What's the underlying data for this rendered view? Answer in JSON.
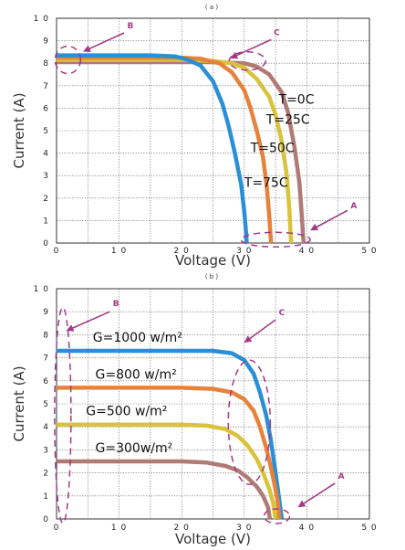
{
  "chart_data": [
    {
      "type": "line",
      "panel_label": "( a )",
      "xlabel": "Voltage (V)",
      "ylabel": "Current (A)",
      "xlim": [
        0,
        50
      ],
      "ylim": [
        0,
        10
      ],
      "x_ticks": [
        "0",
        "1 0",
        "2 0",
        "3 0",
        "4 0",
        "5 0"
      ],
      "y_ticks": [
        "0",
        "1",
        "2",
        "3",
        "4",
        "5",
        "6",
        "7",
        "8",
        "9",
        "1 0"
      ],
      "grid": true,
      "series": [
        {
          "name": "T=0C",
          "color": "#b07a75",
          "points": [
            [
              0,
              8.05
            ],
            [
              5,
              8.05
            ],
            [
              10,
              8.05
            ],
            [
              15,
              8.05
            ],
            [
              20,
              8.05
            ],
            [
              25,
              8.05
            ],
            [
              30,
              8.0
            ],
            [
              32,
              7.85
            ],
            [
              34,
              7.5
            ],
            [
              36,
              6.7
            ],
            [
              37,
              5.8
            ],
            [
              38,
              4.3
            ],
            [
              38.8,
              2.7
            ],
            [
              39.2,
              1.2
            ],
            [
              39.4,
              0.3
            ],
            [
              39.5,
              0
            ]
          ],
          "label_pos": [
            35.5,
            6.2
          ]
        },
        {
          "name": "T=25C",
          "color": "#d8c33a",
          "points": [
            [
              0,
              8.15
            ],
            [
              5,
              8.15
            ],
            [
              10,
              8.15
            ],
            [
              15,
              8.15
            ],
            [
              20,
              8.15
            ],
            [
              25,
              8.1
            ],
            [
              28,
              8.0
            ],
            [
              30,
              7.8
            ],
            [
              32,
              7.3
            ],
            [
              34,
              6.5
            ],
            [
              35,
              5.7
            ],
            [
              36,
              4.5
            ],
            [
              36.8,
              3.0
            ],
            [
              37.2,
              1.5
            ],
            [
              37.4,
              0.4
            ],
            [
              37.5,
              0
            ]
          ],
          "label_pos": [
            33.5,
            5.3
          ]
        },
        {
          "name": "T=50C",
          "color": "#e6823a",
          "points": [
            [
              0,
              8.25
            ],
            [
              5,
              8.25
            ],
            [
              10,
              8.25
            ],
            [
              15,
              8.25
            ],
            [
              20,
              8.25
            ],
            [
              23,
              8.2
            ],
            [
              26,
              8.0
            ],
            [
              28,
              7.6
            ],
            [
              30,
              6.8
            ],
            [
              31,
              6.0
            ],
            [
              32,
              5.0
            ],
            [
              33,
              3.8
            ],
            [
              33.6,
              2.5
            ],
            [
              34,
              1.2
            ],
            [
              34.2,
              0.3
            ],
            [
              34.3,
              0
            ]
          ],
          "label_pos": [
            31.0,
            4.05
          ]
        },
        {
          "name": "T=75C",
          "color": "#2a8fd6",
          "points": [
            [
              0,
              8.35
            ],
            [
              5,
              8.35
            ],
            [
              10,
              8.35
            ],
            [
              15,
              8.35
            ],
            [
              19,
              8.3
            ],
            [
              21,
              8.15
            ],
            [
              23,
              7.9
            ],
            [
              25,
              7.2
            ],
            [
              26.5,
              6.2
            ],
            [
              27.5,
              5.2
            ],
            [
              28.5,
              4.0
            ],
            [
              29.5,
              2.6
            ],
            [
              30,
              1.4
            ],
            [
              30.3,
              0.4
            ],
            [
              30.4,
              0
            ]
          ],
          "label_pos": [
            30.0,
            2.5
          ]
        }
      ],
      "annotations": [
        {
          "letter": "B",
          "letter_pos": [
            11.8,
            9.55
          ],
          "arrow_from": [
            10.8,
            9.35
          ],
          "arrow_to": [
            4.5,
            8.55
          ]
        },
        {
          "letter": "C",
          "letter_pos": [
            35.2,
            9.25
          ],
          "arrow_from": [
            34.3,
            9.05
          ],
          "arrow_to": [
            28.0,
            8.25
          ]
        },
        {
          "letter": "A",
          "letter_pos": [
            47.5,
            1.55
          ],
          "arrow_from": [
            46.5,
            1.45
          ],
          "arrow_to": [
            40.8,
            0.6
          ]
        }
      ]
    },
    {
      "type": "line",
      "panel_label": "( b )",
      "xlabel": "Voltage (V)",
      "ylabel": "Current (A)",
      "xlim": [
        0,
        50
      ],
      "ylim": [
        0,
        10
      ],
      "x_ticks": [
        "0",
        "1 0",
        "2 0",
        "3 0",
        "4 0",
        "5 0"
      ],
      "y_ticks": [
        "0",
        "1",
        "2",
        "3",
        "4",
        "5",
        "6",
        "7",
        "8",
        "9",
        "1 0"
      ],
      "grid": true,
      "series": [
        {
          "name": "G=1000 w/m²",
          "color": "#2a8fd6",
          "points": [
            [
              0,
              7.3
            ],
            [
              5,
              7.3
            ],
            [
              10,
              7.3
            ],
            [
              15,
              7.3
            ],
            [
              20,
              7.3
            ],
            [
              25,
              7.3
            ],
            [
              28,
              7.2
            ],
            [
              30,
              6.9
            ],
            [
              31.5,
              6.3
            ],
            [
              32.5,
              5.5
            ],
            [
              33.5,
              4.5
            ],
            [
              34.2,
              3.5
            ],
            [
              34.8,
              2.4
            ],
            [
              35.3,
              1.4
            ],
            [
              35.7,
              0.6
            ],
            [
              36,
              0
            ]
          ],
          "label_pos": [
            5.8,
            7.7
          ]
        },
        {
          "name": "G=800 w/m²",
          "color": "#e6823a",
          "points": [
            [
              0,
              5.7
            ],
            [
              5,
              5.7
            ],
            [
              10,
              5.7
            ],
            [
              15,
              5.7
            ],
            [
              20,
              5.7
            ],
            [
              25,
              5.65
            ],
            [
              28,
              5.5
            ],
            [
              30,
              5.2
            ],
            [
              31.5,
              4.7
            ],
            [
              32.5,
              4.0
            ],
            [
              33.5,
              3.1
            ],
            [
              34.3,
              2.2
            ],
            [
              34.9,
              1.4
            ],
            [
              35.4,
              0.7
            ],
            [
              35.6,
              0
            ]
          ],
          "label_pos": [
            6.2,
            6.1
          ]
        },
        {
          "name": "G=500 w/m²",
          "color": "#d8c33a",
          "points": [
            [
              0,
              4.1
            ],
            [
              5,
              4.1
            ],
            [
              10,
              4.1
            ],
            [
              15,
              4.1
            ],
            [
              20,
              4.1
            ],
            [
              24,
              4.05
            ],
            [
              27,
              3.9
            ],
            [
              29,
              3.6
            ],
            [
              30.5,
              3.2
            ],
            [
              32,
              2.6
            ],
            [
              33,
              2.0
            ],
            [
              34,
              1.3
            ],
            [
              34.6,
              0.7
            ],
            [
              35,
              0
            ]
          ],
          "label_pos": [
            4.7,
            4.5
          ]
        },
        {
          "name": "G=300w/m²",
          "color": "#b07a75",
          "points": [
            [
              0,
              2.5
            ],
            [
              5,
              2.5
            ],
            [
              10,
              2.5
            ],
            [
              15,
              2.5
            ],
            [
              20,
              2.5
            ],
            [
              24,
              2.45
            ],
            [
              27,
              2.3
            ],
            [
              29,
              2.1
            ],
            [
              30.5,
              1.8
            ],
            [
              32,
              1.4
            ],
            [
              33,
              1.0
            ],
            [
              33.8,
              0.5
            ],
            [
              34.1,
              0
            ]
          ],
          "label_pos": [
            6.2,
            2.9
          ]
        }
      ],
      "annotations": [
        {
          "letter": "B",
          "letter_pos": [
            9.5,
            9.25
          ],
          "arrow_from": [
            8.5,
            9.0
          ],
          "arrow_to": [
            1.8,
            8.2
          ]
        },
        {
          "letter": "C",
          "letter_pos": [
            36.0,
            8.85
          ],
          "arrow_from": [
            35.0,
            8.65
          ],
          "arrow_to": [
            30.2,
            7.7
          ]
        },
        {
          "letter": "A",
          "letter_pos": [
            45.5,
            1.75
          ],
          "arrow_from": [
            44.5,
            1.55
          ],
          "arrow_to": [
            38.8,
            0.55
          ]
        }
      ]
    }
  ]
}
